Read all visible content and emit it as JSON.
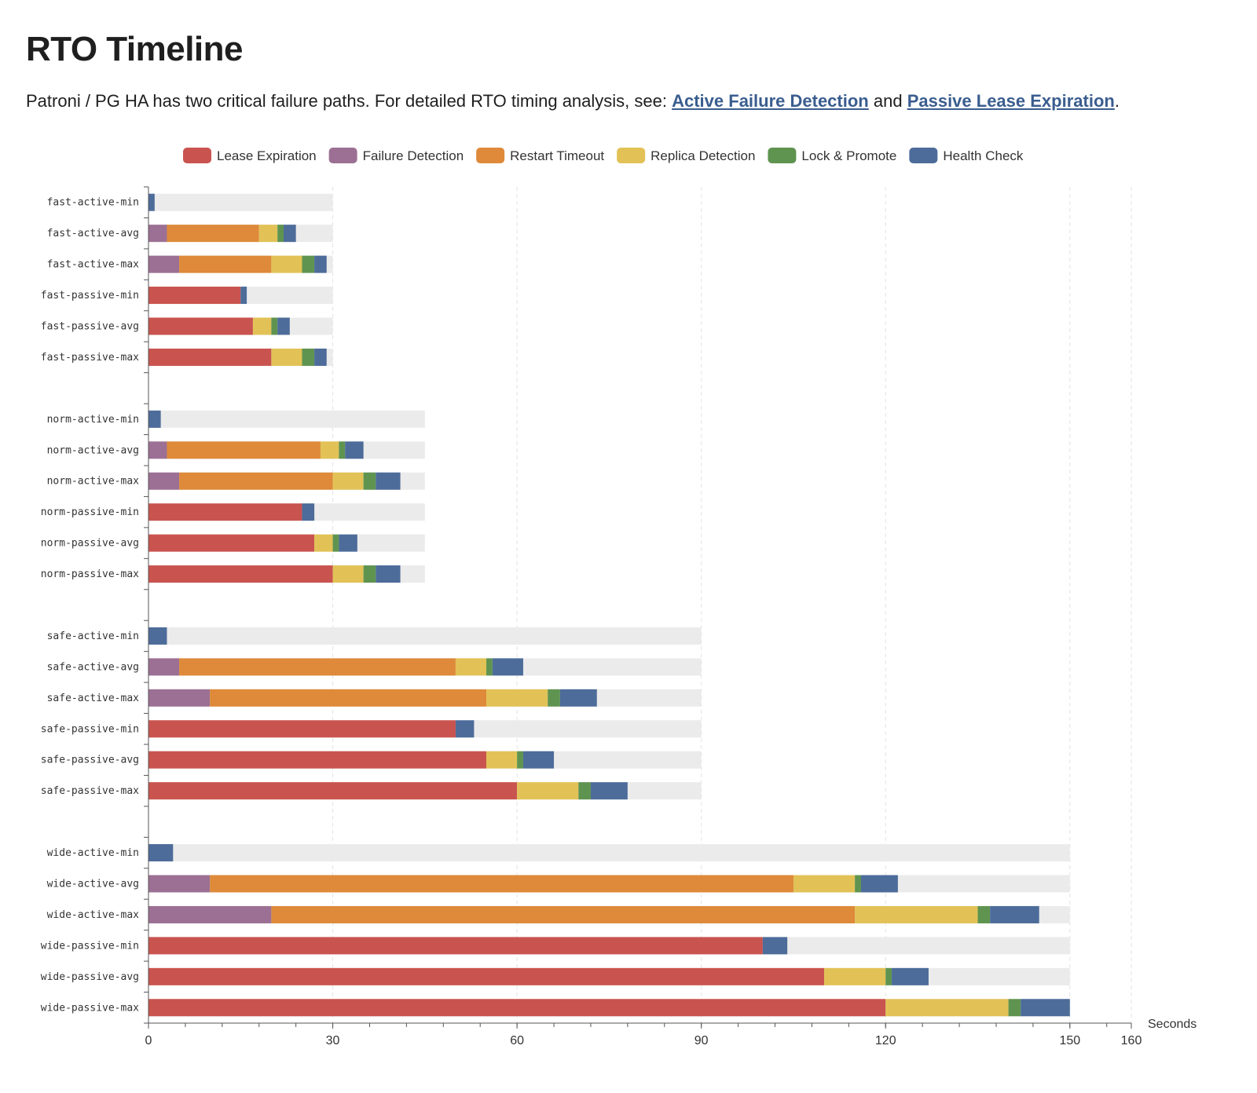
{
  "page": {
    "title": "RTO Timeline",
    "intro_prefix": "Patroni / PG HA has two critical failure paths. For detailed RTO timing analysis, see: ",
    "link_active": "Active Failure Detection",
    "intro_and": " and ",
    "link_passive": "Passive Lease Expiration",
    "intro_suffix": "."
  },
  "chart_data": {
    "type": "bar",
    "orientation": "horizontal",
    "stacked": true,
    "title": "",
    "xlabel": "Seconds",
    "ylabel": "",
    "xlim": [
      0,
      160
    ],
    "x_ticks": [
      0,
      30,
      60,
      90,
      120,
      150,
      160
    ],
    "grid": "vertical dashed",
    "legend_position": "top",
    "categories": [
      "fast-active-min",
      "fast-active-avg",
      "fast-active-max",
      "fast-passive-min",
      "fast-passive-avg",
      "fast-passive-max",
      "",
      "norm-active-min",
      "norm-active-avg",
      "norm-active-max",
      "norm-passive-min",
      "norm-passive-avg",
      "norm-passive-max",
      "",
      "safe-active-min",
      "safe-active-avg",
      "safe-active-max",
      "safe-passive-min",
      "safe-passive-avg",
      "safe-passive-max",
      "",
      "wide-active-min",
      "wide-active-avg",
      "wide-active-max",
      "wide-passive-min",
      "wide-passive-avg",
      "wide-passive-max"
    ],
    "background_limit": [
      30,
      30,
      30,
      30,
      30,
      30,
      null,
      45,
      45,
      45,
      45,
      45,
      45,
      null,
      90,
      90,
      90,
      90,
      90,
      90,
      null,
      150,
      150,
      150,
      150,
      150,
      150
    ],
    "series": [
      {
        "name": "Lease Expiration",
        "color": "#c9544f",
        "values": [
          0,
          0,
          0,
          15,
          17,
          20,
          null,
          0,
          0,
          0,
          25,
          27,
          30,
          null,
          0,
          0,
          0,
          50,
          55,
          60,
          null,
          0,
          0,
          0,
          100,
          110,
          120
        ]
      },
      {
        "name": "Failure Detection",
        "color": "#9c7094",
        "values": [
          0,
          3,
          5,
          0,
          0,
          0,
          null,
          0,
          3,
          5,
          0,
          0,
          0,
          null,
          0,
          5,
          10,
          0,
          0,
          0,
          null,
          0,
          10,
          20,
          0,
          0,
          0
        ]
      },
      {
        "name": "Restart Timeout",
        "color": "#de8a3a",
        "values": [
          0,
          15,
          15,
          0,
          0,
          0,
          null,
          0,
          25,
          25,
          0,
          0,
          0,
          null,
          0,
          45,
          45,
          0,
          0,
          0,
          null,
          0,
          95,
          95,
          0,
          0,
          0
        ]
      },
      {
        "name": "Replica Detection",
        "color": "#e2c257",
        "values": [
          0,
          3,
          5,
          0,
          3,
          5,
          null,
          0,
          3,
          5,
          0,
          3,
          5,
          null,
          0,
          5,
          10,
          0,
          5,
          10,
          null,
          0,
          10,
          20,
          0,
          10,
          20
        ]
      },
      {
        "name": "Lock & Promote",
        "color": "#5f9450",
        "values": [
          0,
          1,
          2,
          0,
          1,
          2,
          null,
          0,
          1,
          2,
          0,
          1,
          2,
          null,
          0,
          1,
          2,
          0,
          1,
          2,
          null,
          0,
          1,
          2,
          0,
          1,
          2
        ]
      },
      {
        "name": "Health Check",
        "color": "#4d6c9a",
        "values": [
          1,
          2,
          2,
          1,
          2,
          2,
          null,
          2,
          3,
          4,
          2,
          3,
          4,
          null,
          3,
          5,
          6,
          3,
          5,
          6,
          null,
          4,
          6,
          8,
          4,
          6,
          8
        ]
      }
    ]
  }
}
